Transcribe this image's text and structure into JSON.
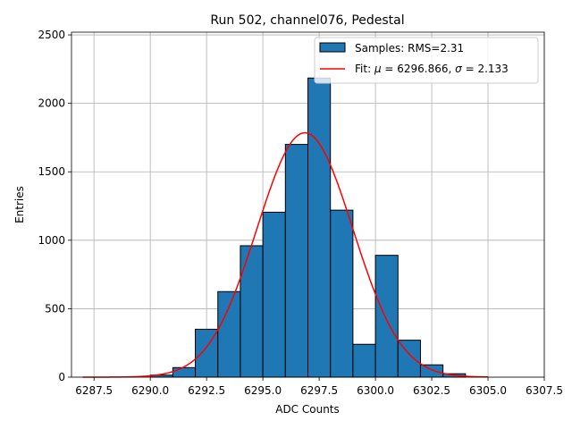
{
  "chart_data": {
    "type": "bar",
    "title": "Run 502, channel076, Pedestal",
    "xlabel": "ADC Counts",
    "ylabel": "Entries",
    "xlim": [
      6286.5,
      6307.5
    ],
    "ylim": [
      0,
      2520
    ],
    "grid": true,
    "legend_position": "top-right",
    "x_ticks": [
      6287.5,
      6290.0,
      6292.5,
      6295.0,
      6297.5,
      6300.0,
      6302.5,
      6305.0,
      6307.5
    ],
    "x_tick_labels": [
      "6287.5",
      "6290.0",
      "6292.5",
      "6295.0",
      "6297.5",
      "6300.0",
      "6302.5",
      "6305.0",
      "6307.5"
    ],
    "y_ticks": [
      0,
      500,
      1000,
      1500,
      2000,
      2500
    ],
    "y_tick_labels": [
      "0",
      "500",
      "1000",
      "1500",
      "2000",
      "2500"
    ],
    "histogram": {
      "name": "Samples: RMS=2.31",
      "color": "#1f77b4",
      "edgecolor": "#000000",
      "bins": [
        {
          "left": 6290.0,
          "right": 6291.0,
          "count": 15
        },
        {
          "left": 6291.0,
          "right": 6292.0,
          "count": 70
        },
        {
          "left": 6292.0,
          "right": 6293.0,
          "count": 350
        },
        {
          "left": 6293.0,
          "right": 6294.0,
          "count": 625
        },
        {
          "left": 6294.0,
          "right": 6295.0,
          "count": 960
        },
        {
          "left": 6295.0,
          "right": 6296.0,
          "count": 1205
        },
        {
          "left": 6296.0,
          "right": 6297.0,
          "count": 1700
        },
        {
          "left": 6297.0,
          "right": 6298.0,
          "count": 2185
        },
        {
          "left": 6298.0,
          "right": 6299.0,
          "count": 1220
        },
        {
          "left": 6299.0,
          "right": 6300.0,
          "count": 240
        },
        {
          "left": 6300.0,
          "right": 6301.0,
          "count": 890
        },
        {
          "left": 6301.0,
          "right": 6302.0,
          "count": 270
        },
        {
          "left": 6302.0,
          "right": 6303.0,
          "count": 90
        },
        {
          "left": 6303.0,
          "right": 6304.0,
          "count": 25
        }
      ]
    },
    "fit": {
      "name": "Fit: μ = 6296.866, σ = 2.133",
      "label_prefix": "Fit: ",
      "mu_symbol": "μ",
      "mu_text": " = 6296.866, ",
      "sigma_symbol": "σ",
      "sigma_text": " = 2.133",
      "color": "#ff0000",
      "mu": 6296.866,
      "sigma": 2.133,
      "amplitude": 1785,
      "x_range": [
        6287.0,
        6305.0
      ]
    }
  }
}
